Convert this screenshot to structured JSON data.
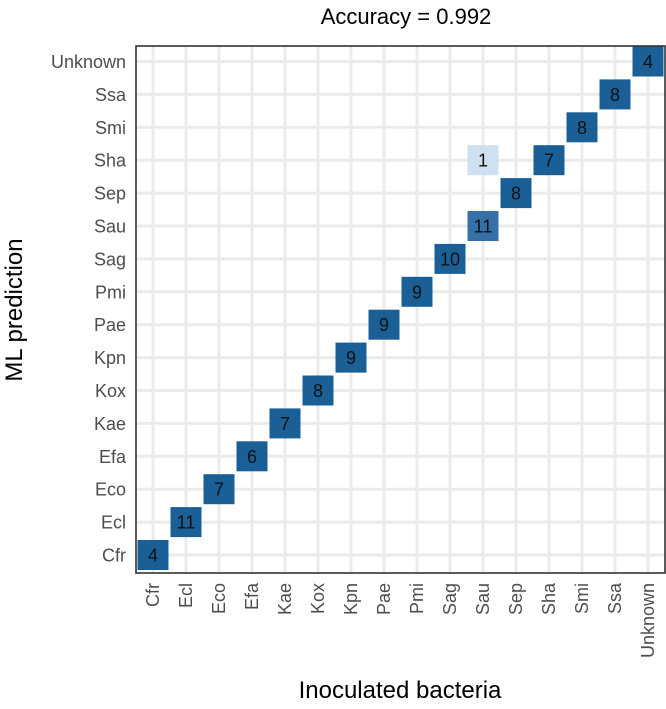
{
  "chart_data": {
    "type": "heatmap",
    "title": "Accuracy = 0.992",
    "xlabel": "Inoculated bacteria",
    "ylabel": "ML prediction",
    "x_categories": [
      "Cfr",
      "Ecl",
      "Eco",
      "Efa",
      "Kae",
      "Kox",
      "Kpn",
      "Pae",
      "Pmi",
      "Sag",
      "Sau",
      "Sep",
      "Sha",
      "Smi",
      "Ssa",
      "Unknown"
    ],
    "y_categories": [
      "Cfr",
      "Ecl",
      "Eco",
      "Efa",
      "Kae",
      "Kox",
      "Kpn",
      "Pae",
      "Pmi",
      "Sag",
      "Sau",
      "Sep",
      "Sha",
      "Smi",
      "Ssa",
      "Unknown"
    ],
    "cells": [
      {
        "x": "Cfr",
        "y": "Cfr",
        "value": 4
      },
      {
        "x": "Ecl",
        "y": "Ecl",
        "value": 11
      },
      {
        "x": "Eco",
        "y": "Eco",
        "value": 7
      },
      {
        "x": "Efa",
        "y": "Efa",
        "value": 6
      },
      {
        "x": "Kae",
        "y": "Kae",
        "value": 7
      },
      {
        "x": "Kox",
        "y": "Kox",
        "value": 8
      },
      {
        "x": "Kpn",
        "y": "Kpn",
        "value": 9
      },
      {
        "x": "Pae",
        "y": "Pae",
        "value": 9
      },
      {
        "x": "Pmi",
        "y": "Pmi",
        "value": 9
      },
      {
        "x": "Sag",
        "y": "Sag",
        "value": 10
      },
      {
        "x": "Sau",
        "y": "Sau",
        "value": 11
      },
      {
        "x": "Sau",
        "y": "Sha",
        "value": 1
      },
      {
        "x": "Sep",
        "y": "Sep",
        "value": 8
      },
      {
        "x": "Sha",
        "y": "Sha",
        "value": 7
      },
      {
        "x": "Smi",
        "y": "Smi",
        "value": 8
      },
      {
        "x": "Ssa",
        "y": "Ssa",
        "value": 8
      },
      {
        "x": "Unknown",
        "y": "Unknown",
        "value": 4
      }
    ],
    "color_fills": {
      "Cfr|Cfr": 1.0,
      "Ecl|Ecl": 1.0,
      "Eco|Eco": 1.0,
      "Efa|Efa": 1.0,
      "Kae|Kae": 1.0,
      "Kox|Kox": 1.0,
      "Kpn|Kpn": 1.0,
      "Pae|Pae": 1.0,
      "Pmi|Pmi": 1.0,
      "Sag|Sag": 1.0,
      "Sau|Sau": 0.917,
      "Sau|Sha": 0.083,
      "Sep|Sep": 1.0,
      "Sha|Sha": 1.0,
      "Smi|Smi": 1.0,
      "Ssa|Ssa": 1.0,
      "Unknown|Unknown": 1.0
    },
    "colors": {
      "high": "#1a5f96",
      "mid": "#3670a8",
      "low": "#deebf7",
      "grid": "#ebebeb",
      "background": "#ffffff",
      "border": "#333333"
    },
    "grid": true,
    "legend": "none"
  }
}
